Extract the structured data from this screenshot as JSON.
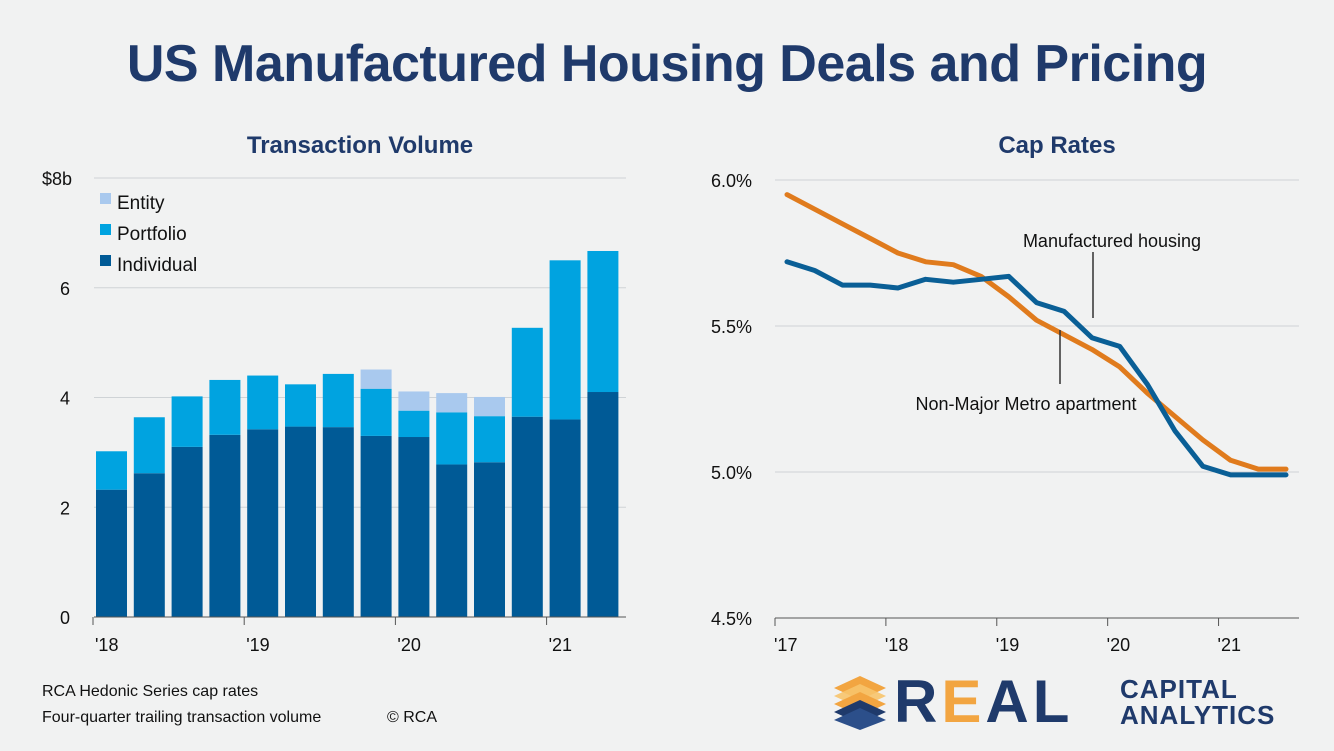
{
  "title": "US Manufactured Housing Deals and Pricing",
  "footer": {
    "line1": "RCA Hedonic Series cap rates",
    "line2": "Four-quarter trailing transaction volume",
    "copyright": "© RCA"
  },
  "logo": {
    "word_main": "REAL",
    "word_top": "CAPITAL",
    "word_bottom": "ANALYTICS"
  },
  "colors": {
    "title": "#1f3a6b",
    "individual": "#005a96",
    "portfolio": "#00a3e0",
    "entity": "#a9c9ee",
    "manufactured_housing": "#0a5f96",
    "non_major_metro": "#e07b1d",
    "logo_orange": "#f2a541"
  },
  "chart_data": [
    {
      "type": "bar",
      "stacked": true,
      "title": "Transaction Volume",
      "xlabel": "",
      "ylabel": "",
      "ylim": [
        0,
        8
      ],
      "yticks": [
        "0",
        "2",
        "4",
        "6",
        "$8b"
      ],
      "ytick_values": [
        0,
        2,
        4,
        6,
        8
      ],
      "xtick_labels": [
        "'18",
        "'19",
        "'20",
        "'21"
      ],
      "xtick_positions": [
        0,
        4,
        8,
        12
      ],
      "legend": [
        "Entity",
        "Portfolio",
        "Individual"
      ],
      "legend_position": "top-left",
      "categories": [
        "Q1'18",
        "Q2'18",
        "Q3'18",
        "Q4'18",
        "Q1'19",
        "Q2'19",
        "Q3'19",
        "Q4'19",
        "Q1'20",
        "Q2'20",
        "Q3'20",
        "Q4'20",
        "Q1'21",
        "Q2'21"
      ],
      "series": [
        {
          "name": "Individual",
          "values": [
            2.32,
            2.62,
            3.1,
            3.32,
            3.42,
            3.47,
            3.46,
            3.3,
            3.28,
            2.78,
            2.82,
            3.65,
            3.6,
            4.1
          ]
        },
        {
          "name": "Portfolio",
          "values": [
            0.7,
            1.02,
            0.92,
            1.0,
            0.98,
            0.77,
            0.97,
            0.86,
            0.48,
            0.95,
            0.84,
            1.62,
            2.9,
            2.57
          ]
        },
        {
          "name": "Entity",
          "values": [
            0,
            0,
            0,
            0,
            0,
            0,
            0,
            0.35,
            0.35,
            0.35,
            0.35,
            0,
            0,
            0
          ]
        }
      ]
    },
    {
      "type": "line",
      "title": "Cap Rates",
      "xlabel": "",
      "ylabel": "",
      "ylim": [
        4.5,
        6.0
      ],
      "yticks": [
        "4.5%",
        "5.0%",
        "5.5%",
        "6.0%"
      ],
      "ytick_values": [
        4.5,
        5.0,
        5.5,
        6.0
      ],
      "xtick_labels": [
        "'17",
        "'18",
        "'19",
        "'20",
        "'21"
      ],
      "xtick_positions": [
        0,
        4,
        8,
        12,
        16
      ],
      "x": [
        0,
        1,
        2,
        3,
        4,
        5,
        6,
        7,
        8,
        9,
        10,
        11,
        12,
        13,
        14,
        15,
        16,
        17,
        18
      ],
      "series": [
        {
          "name": "Manufactured housing",
          "values": [
            5.72,
            5.69,
            5.64,
            5.64,
            5.63,
            5.66,
            5.65,
            5.66,
            5.67,
            5.58,
            5.55,
            5.46,
            5.43,
            5.3,
            5.14,
            5.02,
            4.99,
            4.99,
            4.99
          ]
        },
        {
          "name": "Non-Major Metro apartment",
          "values": [
            5.95,
            5.9,
            5.85,
            5.8,
            5.75,
            5.72,
            5.71,
            5.67,
            5.6,
            5.52,
            5.47,
            5.42,
            5.36,
            5.27,
            5.19,
            5.11,
            5.04,
            5.01,
            5.01
          ]
        }
      ],
      "annotations": [
        "Manufactured housing",
        "Non-Major Metro apartment"
      ]
    }
  ]
}
